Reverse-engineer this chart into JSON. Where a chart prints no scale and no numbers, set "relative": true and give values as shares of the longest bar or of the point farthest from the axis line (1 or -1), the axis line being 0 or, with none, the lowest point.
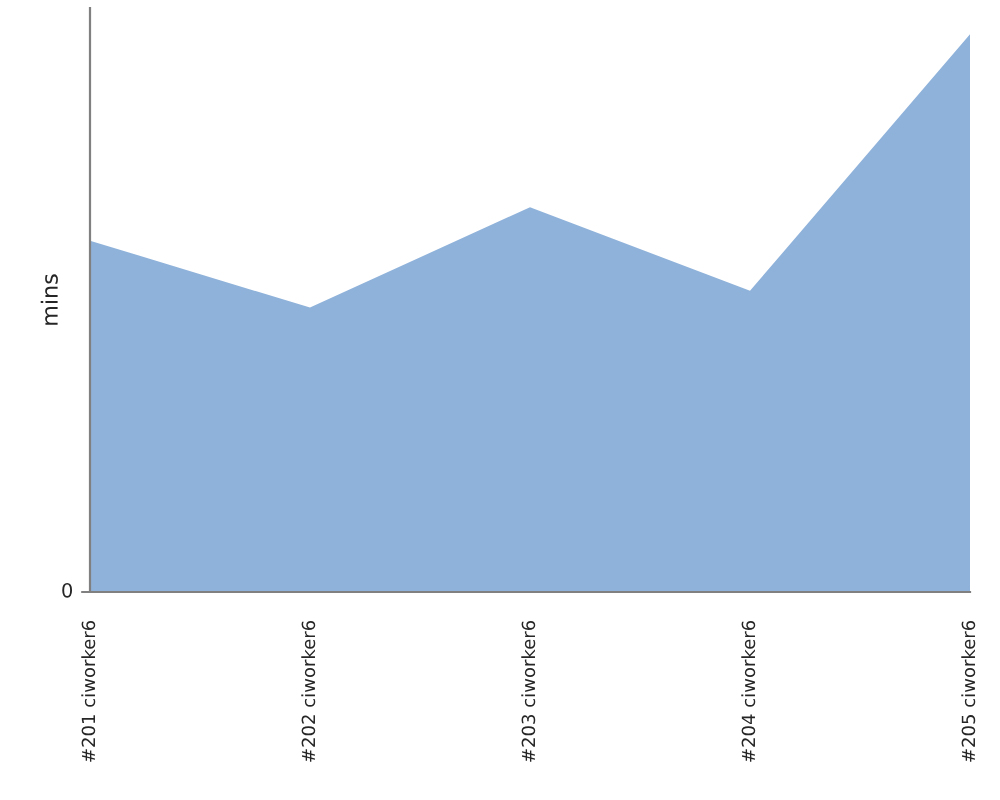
{
  "chart_data": {
    "type": "area",
    "relative": true,
    "ylabel": "mins",
    "annotations": [
      "0"
    ],
    "categories": [
      "#201 ciworker6",
      "#202 ciworker6",
      "#203 ciworker6",
      "#204 ciworker6",
      "#205 ciworker6"
    ],
    "series": [
      {
        "color": "#8fb2da",
        "values": [
          0.63,
          0.51,
          0.69,
          0.54,
          1
        ]
      }
    ],
    "grid": false,
    "legend": false
  }
}
